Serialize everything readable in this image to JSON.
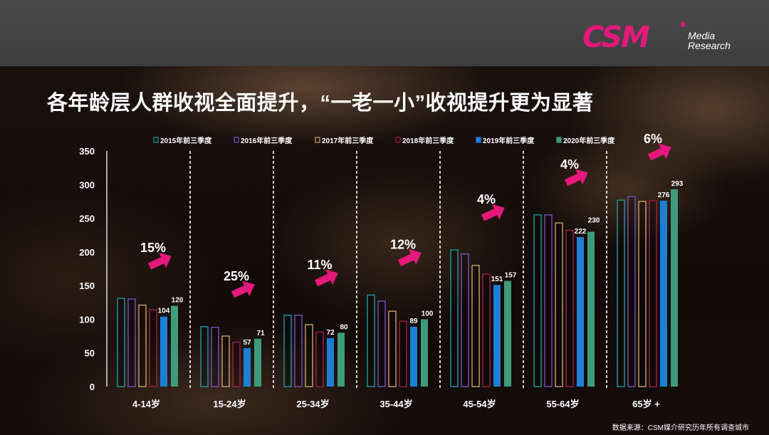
{
  "header": {
    "logo_main": "CSM",
    "logo_line1": "Media",
    "logo_line2": "Research"
  },
  "title": "各年龄层人群收视全面提升，“一老一小”收视提升更为显著",
  "source": "数据来源：CSM媒介研究历年所有调查城市",
  "colors": {
    "series": [
      "#1e9aa8",
      "#7a4fc0",
      "#c9a46a",
      "#a01e4c",
      "#1e7fd6",
      "#3e9b7e"
    ],
    "arrow": "#e5187b"
  },
  "chart_data": {
    "type": "bar",
    "categories": [
      "4-14岁",
      "15-24岁",
      "25-34岁",
      "35-44岁",
      "45-54岁",
      "55-64岁",
      "65岁 +"
    ],
    "series": [
      {
        "name": "2015年前三季度",
        "values": [
          131,
          89,
          106,
          136,
          203,
          255,
          277
        ]
      },
      {
        "name": "2016年前三季度",
        "values": [
          130,
          88,
          106,
          127,
          197,
          255,
          282
        ]
      },
      {
        "name": "2017年前三季度",
        "values": [
          121,
          75,
          92,
          112,
          180,
          243,
          275
        ]
      },
      {
        "name": "2018年前三季度",
        "values": [
          114,
          66,
          81,
          97,
          167,
          232,
          276
        ]
      },
      {
        "name": "2019年前三季度",
        "values": [
          104,
          57,
          72,
          89,
          151,
          222,
          276
        ]
      },
      {
        "name": "2020年前三季度",
        "values": [
          120,
          71,
          80,
          100,
          157,
          230,
          293
        ]
      }
    ],
    "data_labels": {
      "2019年前三季度": [
        "104",
        "57",
        "72",
        "89",
        "151",
        "222",
        "276"
      ],
      "2020年前三季度": [
        "120",
        "71",
        "80",
        "100",
        "157",
        "230",
        "293"
      ]
    },
    "growth_labels": [
      "15%",
      "25%",
      "11%",
      "12%",
      "4%",
      "4%",
      "6%"
    ],
    "y_ticks": [
      "0",
      "50",
      "100",
      "150",
      "200",
      "250",
      "300",
      "350"
    ],
    "ylim": [
      0,
      350
    ],
    "grid": false,
    "legend_position": "top",
    "title": "",
    "xlabel": "",
    "ylabel": ""
  }
}
